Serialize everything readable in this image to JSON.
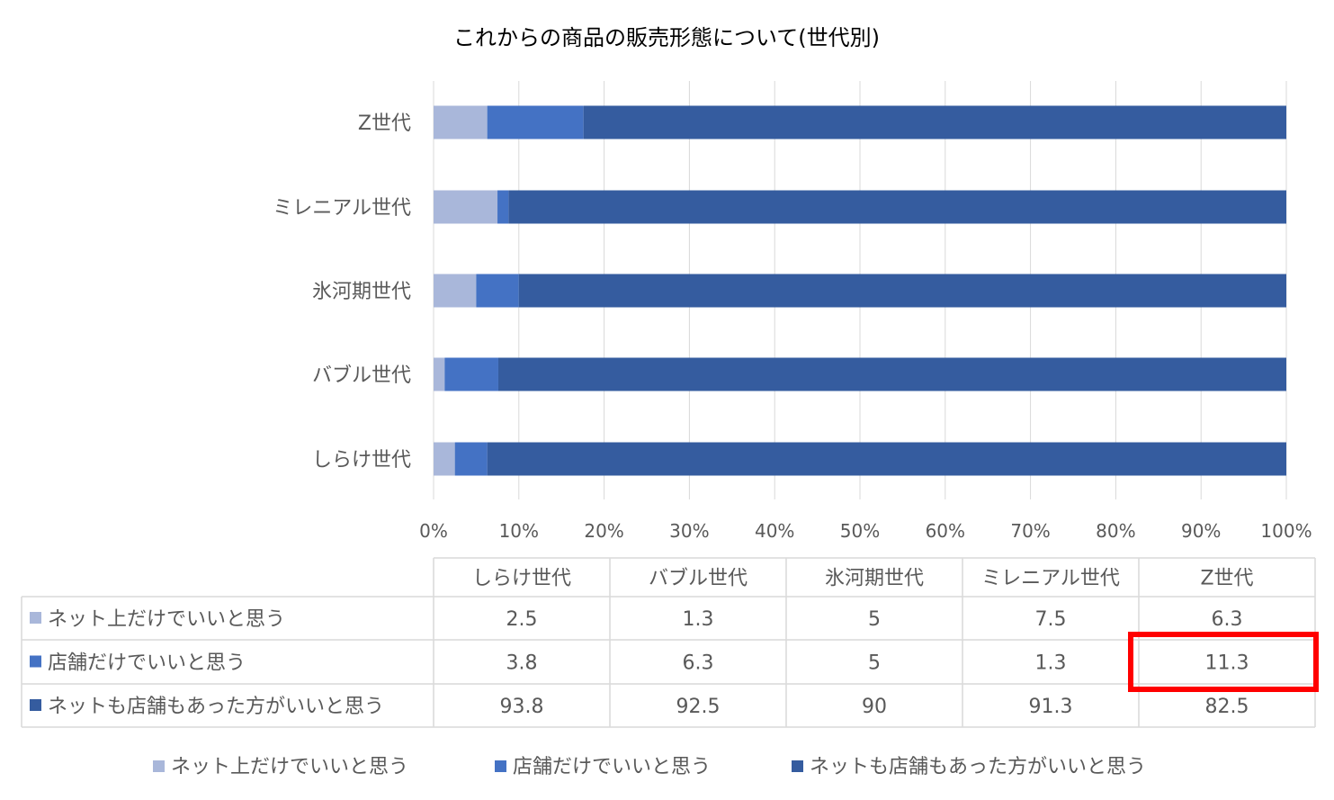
{
  "chart_data": {
    "type": "bar",
    "orientation": "horizontal",
    "stacked": "percent",
    "title": "これからの商品の販売形態について(世代別)",
    "categories": [
      "しらけ世代",
      "バブル世代",
      "氷河期世代",
      "ミレニアル世代",
      "Z世代"
    ],
    "series": [
      {
        "name": "ネット上だけでいいと思う",
        "values": [
          2.5,
          1.3,
          5,
          7.5,
          6.3
        ],
        "color": "#A9B7DA"
      },
      {
        "name": "店舗だけでいいと思う",
        "values": [
          3.8,
          6.3,
          5,
          1.3,
          11.3
        ],
        "color": "#4472C4"
      },
      {
        "name": "ネットも店舗もあった方がいいと思う",
        "values": [
          93.8,
          92.5,
          90,
          91.3,
          82.5
        ],
        "color": "#355C9F"
      }
    ],
    "xaxis": {
      "ticks": [
        "0%",
        "10%",
        "20%",
        "30%",
        "40%",
        "50%",
        "60%",
        "70%",
        "80%",
        "90%",
        "100%"
      ],
      "range": [
        0,
        100
      ],
      "gridlines": true
    },
    "data_table": true,
    "legend_position": "bottom",
    "highlight": {
      "series": "店舗だけでいいと思う",
      "category": "Z世代",
      "color": "#FF0000"
    }
  }
}
